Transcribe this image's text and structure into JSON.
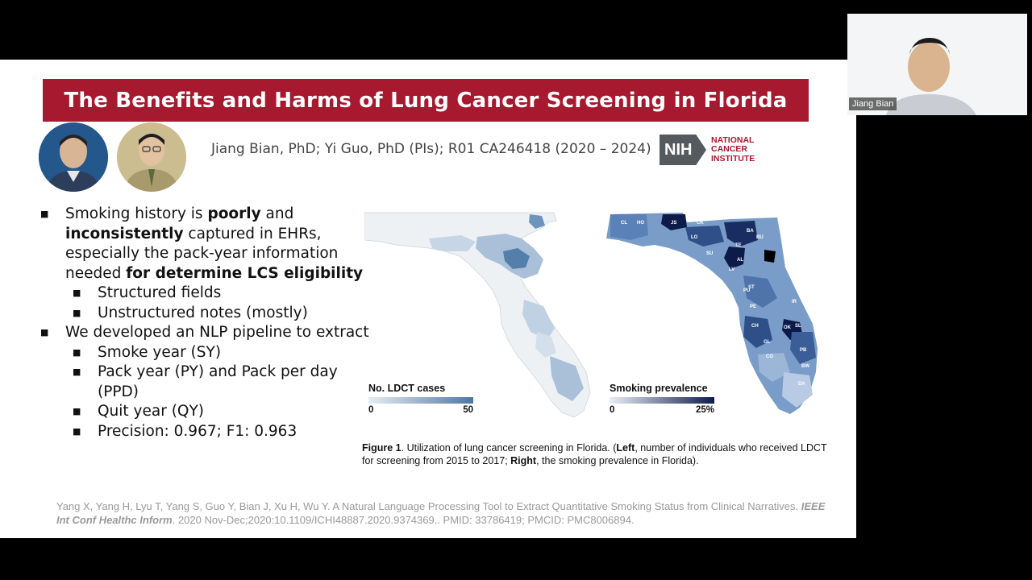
{
  "slide": {
    "title": "The Benefits and Harms of Lung Cancer Screening in Florida",
    "authors": "Jiang Bian, PhD; Yi Guo, PhD (PIs); R01 CA246418 (2020 – 2024)",
    "nih_logo": {
      "badge": "NIH",
      "line1": "NATIONAL",
      "line2": "CANCER",
      "line3": "INSTITUTE"
    },
    "bullets": {
      "b1": {
        "pre": "Smoking history is ",
        "bold1": "poorly",
        "mid1": " and ",
        "bold2": "inconsistently",
        "mid2": " captured in EHRs, especially the pack-year information needed ",
        "bold3": "for determine LCS eligibility"
      },
      "b1_sub": [
        "Structured fields",
        "Unstructured notes (mostly)"
      ],
      "b2": "We developed an NLP pipeline to extract",
      "b2_sub": [
        "Smoke year (SY)",
        "Pack year (PY) and Pack per day (PPD)",
        "Quit year (QY)",
        "Precision: 0.967; F1: 0.963"
      ]
    },
    "maps": {
      "left_legend": {
        "title": "No. LDCT cases",
        "min": "0",
        "max": "50"
      },
      "right_legend": {
        "title": "Smoking prevalence",
        "min": "0",
        "max": "25%"
      },
      "county_labels": [
        "CL",
        "HO",
        "JS",
        "CK",
        "LO",
        "BA",
        "BU",
        "TE",
        "AL",
        "LV",
        "PU",
        "ST",
        "IR",
        "SL",
        "OK",
        "PB",
        "BW",
        "CO",
        "DA",
        "CH",
        "GL",
        "PE",
        "SU"
      ]
    },
    "caption": {
      "fig_label": "Figure 1",
      "t1": ". Utilization of lung cancer screening in Florida. (",
      "left": "Left",
      "t2": ", number of individuals who received LDCT for screening from 2015 to 2017; ",
      "right": "Right",
      "t3": ", the smoking prevalence in Florida)."
    },
    "citation": {
      "authors": "Yang X, Yang H, Lyu T, Yang S, Guo Y, Bian J, Xu H, Wu Y. A Natural Language Processing Tool to Extract Quantitative Smoking Status from Clinical Narratives. ",
      "journal": "IEEE Int Conf Healthc Inform",
      "rest": ". 2020 Nov-Dec;2020:10.1109/ICHI48887.2020.9374369.. PMID: 33786419; PMCID: PMC8006894."
    }
  },
  "webcam": {
    "participant_name": "Jiang Bian"
  },
  "colors": {
    "banner": "#a6192e",
    "map_low": "#dde7f0",
    "map_high": "#0d1b4a"
  }
}
